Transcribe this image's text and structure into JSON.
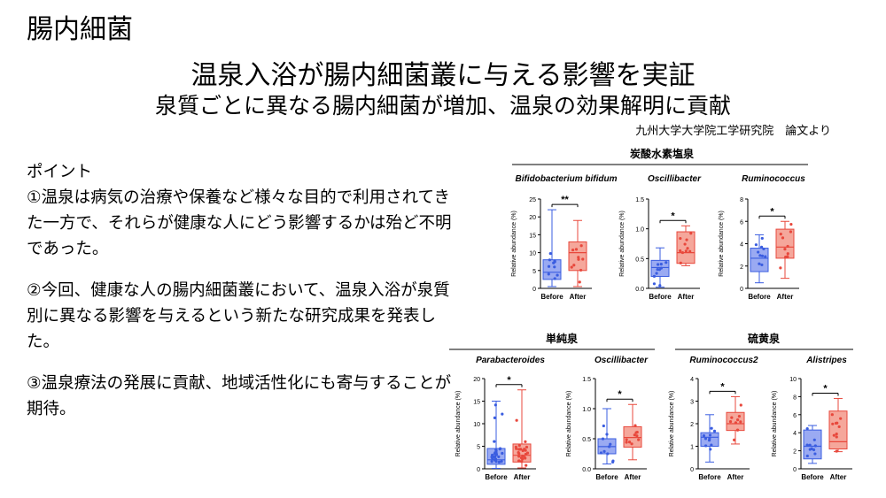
{
  "slide": {
    "section_title": "腸内細菌",
    "main_title": "温泉入浴が腸内細菌叢に与える影響を実証",
    "subtitle": "泉質ごとに異なる腸内細菌が増加、温泉の効果解明に貢献",
    "source": "九州大学大学院工学研究院　論文より"
  },
  "points": {
    "heading": "ポイント",
    "items": [
      "①温泉は病気の治療や保養など様々な目的で利用されてきた一方で、それらが健康な人にどう影響するかは殆ど不明であった。",
      "②今回、健康な人の腸内細菌叢において、温泉入浴が泉質別に異なる影響を与えるという新たな研究成果を発表した。",
      "③温泉療法の発展に貢献、地域活性化にも寄与することが期待。"
    ]
  },
  "groups": [
    {
      "label": "炭酸水素塩泉"
    },
    {
      "label": "単純泉"
    },
    {
      "label": "硫黄泉"
    }
  ],
  "colors": {
    "before": "#3a5de0",
    "after": "#e8483c",
    "before_fill": "#9aaaf2",
    "after_fill": "#f5a79b"
  },
  "chart_data": [
    {
      "type": "box",
      "group": "炭酸水素塩泉",
      "title": "Bifidobacterium bifidum",
      "ylabel": "Relative abundance (%)",
      "categories": [
        "Before",
        "After"
      ],
      "yticks": [
        0,
        5,
        10,
        15,
        20,
        25
      ],
      "ylim": [
        0,
        25
      ],
      "significance": "**",
      "boxes": [
        {
          "min": 0.5,
          "q1": 2.5,
          "median": 4.5,
          "q3": 8,
          "max": 22
        },
        {
          "min": 0.5,
          "q1": 5,
          "median": 10,
          "q3": 13,
          "max": 19
        }
      ]
    },
    {
      "type": "box",
      "group": "炭酸水素塩泉",
      "title": "Oscillibacter",
      "ylabel": "Relative abundance (%)",
      "categories": [
        "Before",
        "After"
      ],
      "yticks": [
        0.0,
        0.5,
        1.0,
        1.5
      ],
      "ylim": [
        0,
        1.5
      ],
      "significance": "*",
      "boxes": [
        {
          "min": 0.02,
          "q1": 0.2,
          "median": 0.35,
          "q3": 0.47,
          "max": 0.68
        },
        {
          "min": 0.38,
          "q1": 0.42,
          "median": 0.6,
          "q3": 0.95,
          "max": 1.05
        }
      ]
    },
    {
      "type": "box",
      "group": "炭酸水素塩泉",
      "title": "Ruminococcus",
      "ylabel": "Relative abundance (%)",
      "categories": [
        "Before",
        "After"
      ],
      "yticks": [
        0,
        2,
        4,
        6,
        8
      ],
      "ylim": [
        0,
        8
      ],
      "significance": "*",
      "boxes": [
        {
          "min": 0.5,
          "q1": 1.5,
          "median": 2.7,
          "q3": 3.6,
          "max": 4.8
        },
        {
          "min": 0.9,
          "q1": 2.7,
          "median": 3.7,
          "q3": 5.3,
          "max": 6.0
        }
      ]
    },
    {
      "type": "box",
      "group": "単純泉",
      "title": "Parabacteroides",
      "ylabel": "Relative abundance (%)",
      "categories": [
        "Before",
        "After"
      ],
      "yticks": [
        0,
        5,
        10,
        15,
        20
      ],
      "ylim": [
        0,
        20
      ],
      "significance": "*",
      "boxes": [
        {
          "min": 0.1,
          "q1": 1,
          "median": 2,
          "q3": 4.5,
          "max": 15
        },
        {
          "min": 0.2,
          "q1": 1.5,
          "median": 3,
          "q3": 5.5,
          "max": 17.5
        }
      ]
    },
    {
      "type": "box",
      "group": "単純泉",
      "title": "Oscillibacter",
      "ylabel": "Relative abundance (%)",
      "categories": [
        "Before",
        "After"
      ],
      "yticks": [
        0.0,
        0.5,
        1.0,
        1.5
      ],
      "ylim": [
        0,
        1.5
      ],
      "significance": "*",
      "boxes": [
        {
          "min": 0.08,
          "q1": 0.25,
          "median": 0.37,
          "q3": 0.5,
          "max": 1.0
        },
        {
          "min": 0.15,
          "q1": 0.36,
          "median": 0.52,
          "q3": 0.7,
          "max": 1.07
        }
      ]
    },
    {
      "type": "box",
      "group": "硫黄泉",
      "title": "Ruminococcus2",
      "ylabel": "Relative abundance (%)",
      "categories": [
        "Before",
        "After"
      ],
      "yticks": [
        0,
        1,
        2,
        3,
        4
      ],
      "ylim": [
        0,
        4
      ],
      "significance": "*",
      "boxes": [
        {
          "min": 0.3,
          "q1": 1.0,
          "median": 1.4,
          "q3": 1.6,
          "max": 2.4
        },
        {
          "min": 1.1,
          "q1": 1.7,
          "median": 2.0,
          "q3": 2.5,
          "max": 3.2
        }
      ]
    },
    {
      "type": "box",
      "group": "硫黄泉",
      "title": "Alistripes",
      "ylabel": "Relative abundance (%)",
      "categories": [
        "Before",
        "After"
      ],
      "yticks": [
        0,
        2,
        4,
        6,
        8,
        10
      ],
      "ylim": [
        0,
        10
      ],
      "significance": "*",
      "boxes": [
        {
          "min": 0.6,
          "q1": 1.1,
          "median": 2.5,
          "q3": 4.3,
          "max": 4.8
        },
        {
          "min": 1.9,
          "q1": 2.2,
          "median": 3.0,
          "q3": 6.4,
          "max": 7.8
        }
      ]
    }
  ]
}
